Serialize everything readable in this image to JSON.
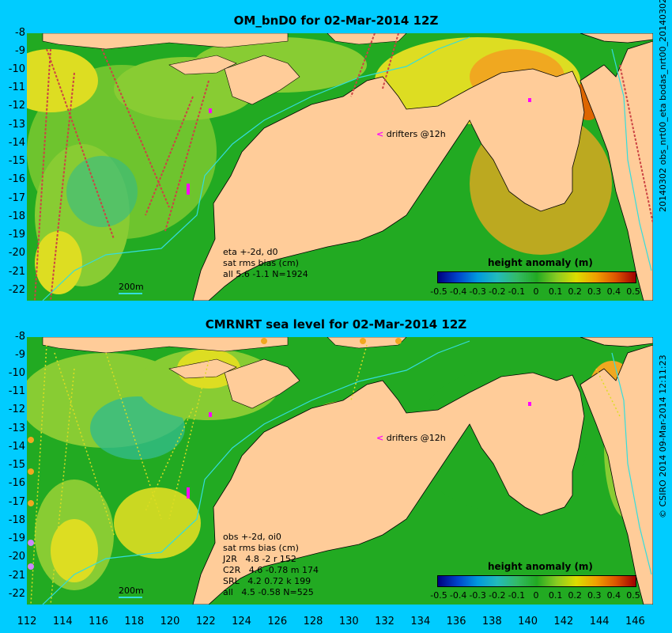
{
  "panels": {
    "top": {
      "title": "OM_bnD0 for 02-Mar-2014 12Z",
      "side_label": "20140302 obs_nrt00_eta   bodas_nrt00_20140302",
      "annotation": "eta +-2d, d0\nsat rms bias (cm)\nall 5.6 -1.1 N=1924",
      "drifters": "drifters @12h",
      "scale": "200m",
      "colorbar_title": "height anomaly (m)"
    },
    "bottom": {
      "title": "CMRNRT sea level  for 02-Mar-2014 12Z",
      "side_label": "© CSIRO 2014   09-Mar-2014 12:11:23",
      "annotation": "obs +-2d, oi0\nsat rms bias (cm)\nJ2R   4.8 -2 r 152\nC2R   4.6 -0.78 m 174\nSRL   4.2 0.72 k 199\nall   4.5 -0.58 N=525",
      "drifters": "drifters @12h",
      "scale": "200m",
      "colorbar_title": "height anomaly (m)"
    }
  },
  "axes": {
    "x_ticks": [
      "112",
      "114",
      "116",
      "118",
      "120",
      "122",
      "124",
      "126",
      "128",
      "130",
      "132",
      "134",
      "136",
      "138",
      "140",
      "142",
      "144",
      "146"
    ],
    "y_ticks": [
      "-8",
      "-9",
      "-10",
      "-11",
      "-12",
      "-13",
      "-14",
      "-15",
      "-16",
      "-17",
      "-18",
      "-19",
      "-20",
      "-21",
      "-22"
    ],
    "lon_range": [
      112,
      147
    ],
    "lat_range": [
      -22.4,
      -8
    ]
  },
  "colorbar": {
    "ticks": [
      "-0.5",
      "-0.4",
      "-0.3",
      "-0.2",
      "-0.1",
      "0",
      "0.1",
      "0.2",
      "0.3",
      "0.4",
      "0.5"
    ],
    "colors": [
      "#000080",
      "#0044cc",
      "#0099dd",
      "#22bbbb",
      "#33bb66",
      "#22aa22",
      "#88cc22",
      "#dddd00",
      "#f0a000",
      "#dd5500",
      "#a00000"
    ]
  },
  "map_colors": {
    "land": "#ffcc99",
    "ocean_green": "#22aa22",
    "light_green": "#88cc33",
    "yellow": "#dddd22",
    "orange": "#f0a820",
    "teal": "#33bb88",
    "contour_200m": "#33dddd",
    "drifter": "#ff00ff"
  }
}
